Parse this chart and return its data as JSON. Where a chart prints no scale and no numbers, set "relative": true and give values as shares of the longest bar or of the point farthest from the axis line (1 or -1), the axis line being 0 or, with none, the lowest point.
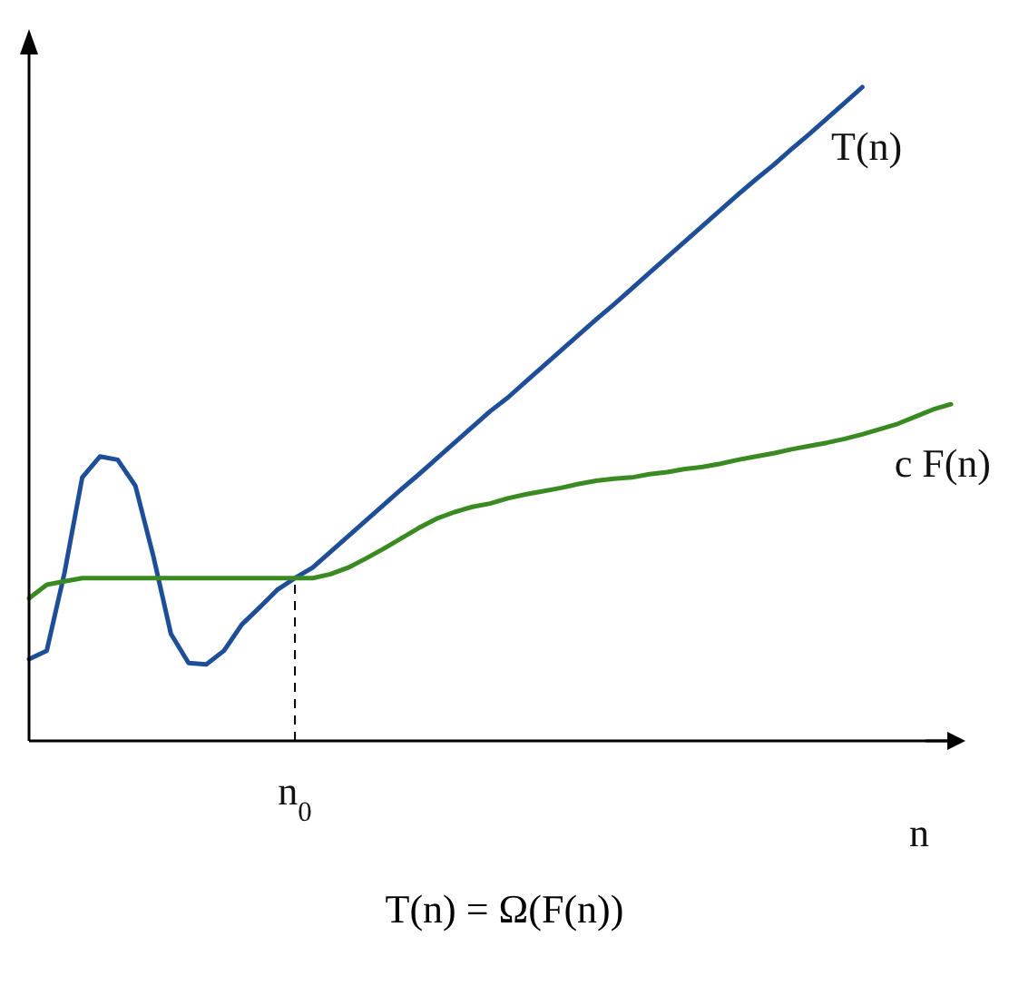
{
  "chart_data": {
    "type": "line",
    "relative": true,
    "xlabel": "n",
    "categories": [
      null,
      null,
      null,
      null,
      null,
      null,
      null,
      null,
      null,
      null,
      null,
      null,
      null,
      null,
      null,
      null,
      null,
      null,
      null,
      null,
      null,
      null,
      null,
      null,
      null,
      null,
      null,
      null,
      null,
      null,
      null,
      null,
      null,
      null,
      null,
      null,
      null,
      null,
      null,
      null,
      null,
      null,
      null,
      null,
      null,
      null,
      null,
      null,
      null,
      null,
      null,
      null,
      null
    ],
    "series": [
      {
        "name": "T(n)",
        "color": "#1f4e99",
        "values": [
          0.125,
          0.138,
          0.257,
          0.403,
          0.435,
          0.43,
          0.39,
          0.284,
          0.164,
          0.119,
          0.117,
          0.138,
          0.178,
          0.204,
          0.231,
          0.249,
          0.265,
          0.289,
          0.313,
          0.337,
          0.361,
          0.385,
          0.408,
          0.432,
          0.456,
          0.48,
          0.504,
          0.525,
          0.549,
          0.573,
          0.597,
          0.621,
          0.645,
          0.668,
          0.692,
          0.716,
          0.74,
          0.764,
          0.788,
          0.812,
          0.836,
          0.859,
          0.881,
          0.905,
          0.928,
          0.952,
          0.976,
          1,
          null,
          null,
          null,
          null,
          null
        ]
      },
      {
        "name": "c F(n)",
        "color": "#3a8a22",
        "values": [
          0.218,
          0.239,
          0.244,
          0.249,
          0.249,
          0.249,
          0.249,
          0.249,
          0.249,
          0.249,
          0.249,
          0.249,
          0.249,
          0.249,
          0.249,
          0.249,
          0.249,
          0.255,
          0.265,
          0.279,
          0.294,
          0.31,
          0.326,
          0.34,
          0.35,
          0.358,
          0.363,
          0.371,
          0.377,
          0.382,
          0.387,
          0.393,
          0.398,
          0.401,
          0.403,
          0.408,
          0.411,
          0.416,
          0.419,
          0.424,
          0.43,
          0.435,
          0.44,
          0.446,
          0.451,
          0.456,
          0.462,
          0.469,
          0.477,
          0.485,
          0.496,
          0.507,
          0.515
        ]
      }
    ],
    "annotations": [
      "n$_{0}$",
      "T(n) = Ω(F(n))"
    ],
    "legend": false,
    "grid": false,
    "marker": "none",
    "line_style": "solid"
  }
}
